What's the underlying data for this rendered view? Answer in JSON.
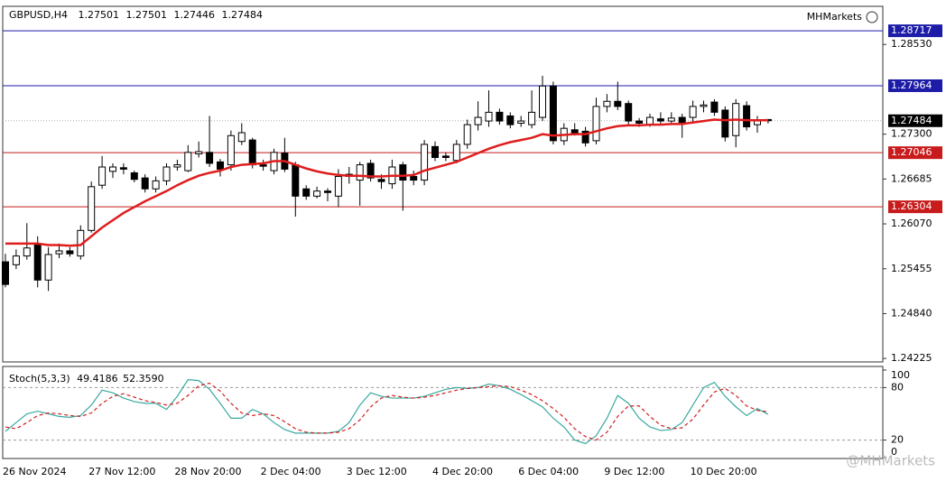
{
  "branding": {
    "chart_logo": "MHMarkets",
    "handle": "@MHMarkets"
  },
  "chart_data": [
    {
      "type": "candlestick",
      "title": "GBPUSD,H4",
      "categories": [
        "26 Nov 2024",
        null,
        null,
        null,
        null,
        null,
        null,
        null,
        "27 Nov 12:00",
        null,
        null,
        null,
        null,
        null,
        null,
        null,
        "28 Nov 20:00",
        null,
        null,
        null,
        null,
        null,
        null,
        null,
        "2 Dec 04:00",
        null,
        null,
        null,
        null,
        null,
        null,
        null,
        "3 Dec 12:00",
        null,
        null,
        null,
        null,
        null,
        null,
        null,
        "4 Dec 20:00",
        null,
        null,
        null,
        null,
        null,
        null,
        null,
        "6 Dec 04:00",
        null,
        null,
        null,
        null,
        null,
        null,
        null,
        "9 Dec 12:00",
        null,
        null,
        null,
        null,
        null,
        null,
        null,
        "10 Dec 20:00",
        null,
        null,
        null,
        null,
        null,
        null,
        null
      ],
      "open": [
        1.2555,
        1.2551,
        1.2563,
        1.2578,
        1.253,
        1.2566,
        1.257,
        1.2563,
        1.2598,
        1.266,
        1.2679,
        1.2684,
        1.2677,
        1.267,
        1.2655,
        1.2666,
        1.2685,
        1.268,
        1.2703,
        1.2705,
        1.2692,
        1.2688,
        1.272,
        1.2722,
        1.2688,
        1.268,
        1.2704,
        1.2688,
        1.2655,
        1.2645,
        1.2652,
        1.2645,
        1.2672,
        1.2667,
        1.269,
        1.2668,
        1.2662,
        1.2688,
        1.2672,
        1.2667,
        1.2713,
        1.27,
        1.2694,
        1.2716,
        1.2743,
        1.2748,
        1.276,
        1.2755,
        1.2745,
        1.2743,
        1.2753,
        1.2796,
        1.2721,
        1.2736,
        1.2734,
        1.2721,
        1.2768,
        1.2775,
        1.2772,
        1.2748,
        1.2743,
        1.2751,
        1.2748,
        1.2753,
        1.2753,
        1.2768,
        1.2774,
        1.2763,
        1.2728,
        1.2769,
        1.2743,
        1.27501
      ],
      "high": [
        1.2566,
        1.2572,
        1.2608,
        1.259,
        1.2575,
        1.258,
        1.2575,
        1.2605,
        1.2665,
        1.27,
        1.269,
        1.269,
        1.268,
        1.2675,
        1.2672,
        1.269,
        1.2695,
        1.2715,
        1.272,
        1.2755,
        1.2696,
        1.2735,
        1.2745,
        1.2725,
        1.2695,
        1.271,
        1.2725,
        1.2692,
        1.266,
        1.2658,
        1.2656,
        1.2682,
        1.2685,
        1.2692,
        1.2695,
        1.2675,
        1.2695,
        1.2692,
        1.268,
        1.2722,
        1.272,
        1.2705,
        1.2722,
        1.275,
        1.2775,
        1.279,
        1.2765,
        1.276,
        1.2755,
        1.279,
        1.281,
        1.2802,
        1.2745,
        1.2745,
        1.274,
        1.278,
        1.2785,
        1.2802,
        1.2776,
        1.2752,
        1.2758,
        1.276,
        1.276,
        1.2758,
        1.2776,
        1.2776,
        1.2778,
        1.2768,
        1.2778,
        1.2775,
        1.2755,
        1.27501
      ],
      "low": [
        1.252,
        1.2545,
        1.2558,
        1.252,
        1.2515,
        1.256,
        1.2562,
        1.2558,
        1.2595,
        1.2655,
        1.267,
        1.2675,
        1.2664,
        1.265,
        1.265,
        1.266,
        1.268,
        1.2678,
        1.2698,
        1.2685,
        1.2672,
        1.268,
        1.2715,
        1.2683,
        1.268,
        1.2675,
        1.2678,
        1.2617,
        1.264,
        1.2642,
        1.2638,
        1.263,
        1.2662,
        1.2632,
        1.2665,
        1.2655,
        1.2655,
        1.2625,
        1.266,
        1.266,
        1.2693,
        1.2693,
        1.269,
        1.271,
        1.2735,
        1.274,
        1.2743,
        1.2738,
        1.274,
        1.2738,
        1.2748,
        1.2716,
        1.2715,
        1.2728,
        1.2713,
        1.2716,
        1.276,
        1.2763,
        1.2743,
        1.274,
        1.274,
        1.2743,
        1.2743,
        1.2725,
        1.2745,
        1.276,
        1.2755,
        1.272,
        1.2712,
        1.2735,
        1.2732,
        1.27446
      ],
      "close": [
        1.2524,
        1.2563,
        1.2574,
        1.253,
        1.2565,
        1.257,
        1.2566,
        1.2598,
        1.2658,
        1.2685,
        1.2685,
        1.2682,
        1.2668,
        1.2655,
        1.2666,
        1.2685,
        1.2688,
        1.2705,
        1.2706,
        1.269,
        1.2682,
        1.2728,
        1.2732,
        1.2688,
        1.2686,
        1.2705,
        1.2682,
        1.2645,
        1.2645,
        1.2652,
        1.265,
        1.2672,
        1.2675,
        1.2688,
        1.267,
        1.2665,
        1.2685,
        1.2667,
        1.2667,
        1.2716,
        1.2698,
        1.2698,
        1.2716,
        1.2743,
        1.2753,
        1.276,
        1.2748,
        1.2743,
        1.2748,
        1.276,
        1.2796,
        1.2721,
        1.2738,
        1.2732,
        1.2718,
        1.2768,
        1.2775,
        1.2768,
        1.2748,
        1.2745,
        1.2753,
        1.2748,
        1.2752,
        1.2746,
        1.2768,
        1.277,
        1.276,
        1.2726,
        1.2772,
        1.274,
        1.2748,
        1.27484
      ],
      "ma": {
        "color": "#e01c1c",
        "values": [
          1.258,
          1.258,
          1.258,
          1.258,
          1.2578,
          1.2578,
          1.2577,
          1.2578,
          1.259,
          1.2602,
          1.2612,
          1.2622,
          1.263,
          1.2638,
          1.2645,
          1.2652,
          1.266,
          1.2667,
          1.2673,
          1.2677,
          1.268,
          1.2685,
          1.2688,
          1.2689,
          1.269,
          1.2693,
          1.2693,
          1.2688,
          1.2683,
          1.2679,
          1.2676,
          1.2674,
          1.2673,
          1.2673,
          1.2672,
          1.2672,
          1.2673,
          1.2673,
          1.2674,
          1.268,
          1.2684,
          1.2688,
          1.2692,
          1.2698,
          1.2704,
          1.271,
          1.2715,
          1.2719,
          1.2722,
          1.2725,
          1.273,
          1.2728,
          1.2729,
          1.273,
          1.273,
          1.2734,
          1.2738,
          1.2741,
          1.2742,
          1.2742,
          1.2743,
          1.2743,
          1.2744,
          1.2744,
          1.2746,
          1.2748,
          1.275,
          1.2749,
          1.275,
          1.2749,
          1.2749,
          1.2749
        ]
      },
      "levels": [
        {
          "value": 1.28717,
          "color": "#1c1ca8"
        },
        {
          "value": 1.27964,
          "color": "#1c1ca8"
        },
        {
          "value": 1.27046,
          "color": "#c81c1c"
        },
        {
          "value": 1.26304,
          "color": "#c81c1c"
        }
      ],
      "ylim": [
        1.2419,
        1.2904
      ],
      "yticks": [
        {
          "value": 1.2853,
          "label": "1.28530"
        },
        {
          "value": 1.273,
          "label": "1.27300"
        },
        1.26685,
        {
          "value": 1.2607,
          "label": "1.26070"
        },
        1.25455,
        {
          "value": 1.2484,
          "label": "1.24840"
        },
        1.24225
      ]
    },
    {
      "type": "line",
      "title": "Stoch(5,3,3)",
      "series": [
        {
          "name": "%K",
          "color": "#3aa8a0",
          "values": [
            30,
            40,
            50,
            53,
            50,
            47,
            46,
            48,
            60,
            77,
            74,
            68,
            64,
            62,
            62,
            55,
            70,
            89,
            88,
            78,
            62,
            45,
            45,
            55,
            50,
            40,
            32,
            28,
            28,
            28,
            28,
            30,
            40,
            60,
            74,
            70,
            68,
            68,
            68,
            70,
            74,
            78,
            80,
            79,
            80,
            84,
            82,
            78,
            72,
            65,
            58,
            45,
            35,
            20,
            16,
            25,
            45,
            71,
            62,
            45,
            35,
            31,
            32,
            40,
            60,
            80,
            86,
            70,
            58,
            48,
            56,
            49.4186
          ]
        },
        {
          "name": "%D",
          "color": "#d02020",
          "values": [
            35,
            33,
            40,
            48,
            51,
            50,
            48,
            47,
            51,
            62,
            70,
            73,
            69,
            65,
            63,
            60,
            62,
            71,
            82,
            85,
            76,
            62,
            51,
            48,
            50,
            48,
            41,
            33,
            29,
            28,
            28,
            29,
            33,
            43,
            58,
            68,
            71,
            69,
            68,
            69,
            71,
            74,
            77,
            79,
            80,
            81,
            82,
            81,
            77,
            72,
            65,
            56,
            46,
            33,
            24,
            20,
            29,
            47,
            59,
            59,
            47,
            37,
            33,
            34,
            44,
            60,
            75,
            79,
            71,
            59,
            54,
            52.359
          ],
          "value_labels": [
            null,
            null,
            null,
            null,
            null,
            null,
            null,
            null,
            null,
            null,
            null,
            null,
            null,
            null,
            null,
            null,
            null,
            null,
            null,
            null,
            null,
            null,
            null,
            null,
            null,
            null,
            null,
            null,
            null,
            null,
            null,
            null,
            null,
            null,
            null,
            null,
            null,
            null,
            null,
            null,
            null,
            null,
            null,
            null,
            null,
            null,
            null,
            null,
            null,
            null,
            null,
            null,
            null,
            null,
            null,
            null,
            null,
            null,
            null,
            null,
            null,
            null,
            null,
            null,
            null,
            null,
            null,
            null,
            null,
            null,
            null,
            "52.3590"
          ]
        }
      ],
      "levels": [
        80,
        20
      ],
      "ylim": [
        0,
        100
      ],
      "yticks": [
        0,
        20,
        80,
        100
      ]
    }
  ]
}
